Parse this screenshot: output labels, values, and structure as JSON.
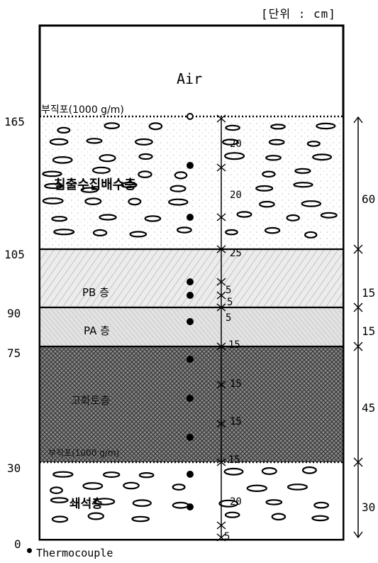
{
  "unit_label": "[단위 : cm]",
  "top_label": "Air",
  "geotextile_top_label": "부직포(1000 g/m)",
  "geotextile_bottom_label": "부직포(1000 g/m)",
  "layers": [
    {
      "name": "침출수집배수층",
      "pattern": "gravel"
    },
    {
      "name": "PB 층",
      "pattern": "hatch-light"
    },
    {
      "name": "PA 층",
      "pattern": "hatch-fine"
    },
    {
      "name": "고화토층",
      "pattern": "crosshatch-dark"
    },
    {
      "name": "쇄석층",
      "pattern": "gravel"
    }
  ],
  "depth_ticks": [
    "165",
    "105",
    "90",
    "75",
    "30",
    "0"
  ],
  "inner_spacings": [
    "20",
    "20",
    "25",
    "5",
    "5",
    "5",
    "15",
    "15",
    "15",
    "15",
    "20",
    "5"
  ],
  "right_thicknesses": [
    "60",
    "15",
    "15",
    "45",
    "30"
  ],
  "legend": {
    "label": "Thermocouple"
  },
  "colors": {
    "line": "#000000",
    "gravel": "#ffffff",
    "pb_fill": "#e6e6e6",
    "pa_fill": "#dcdcdc",
    "soil_fill": "#6a6a6a"
  }
}
